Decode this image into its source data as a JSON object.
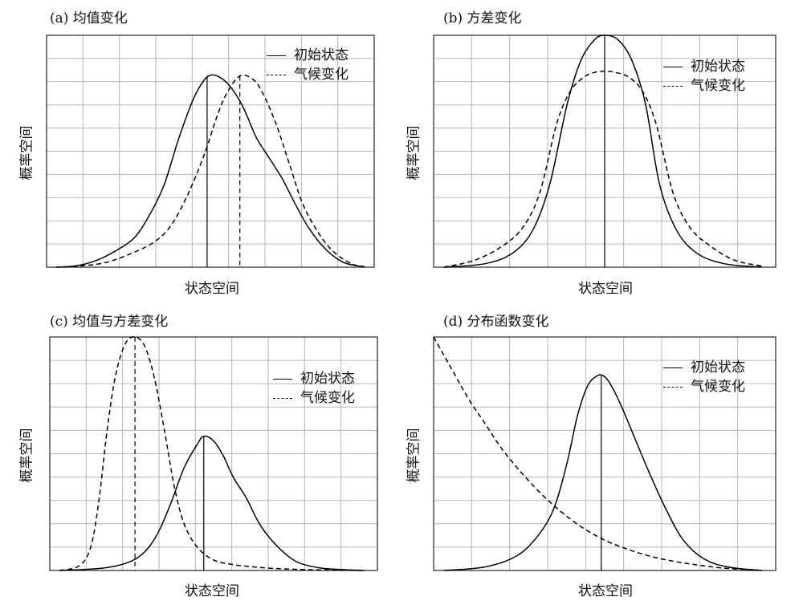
{
  "legend": {
    "initial": "初始状态",
    "climate_change": "气候变化"
  },
  "chart_data": [
    {
      "type": "line",
      "title": "(a) 均值变化",
      "xlabel": "状态空间",
      "ylabel": "概率空间",
      "xlim": [
        0,
        10
      ],
      "ylim": [
        0,
        10
      ],
      "grid": true,
      "legend_position": "top-right",
      "series": [
        {
          "name": "初始状态",
          "style": "solid",
          "x": [
            0.3,
            0.9,
            1.5,
            2.1,
            2.7,
            3.2,
            3.6,
            4.0,
            4.35,
            4.6,
            4.9,
            5.2,
            5.6,
            6.0,
            6.4,
            6.8,
            7.2,
            7.6,
            8.0,
            8.5,
            9.0,
            9.4,
            9.7
          ],
          "y": [
            0.0,
            0.06,
            0.28,
            0.7,
            1.3,
            2.4,
            3.6,
            5.4,
            6.8,
            7.6,
            8.2,
            8.25,
            7.8,
            6.9,
            5.6,
            4.7,
            3.8,
            2.7,
            1.7,
            0.8,
            0.25,
            0.08,
            0.02
          ],
          "peak_line_x": 4.9
        },
        {
          "name": "气候变化",
          "style": "dashed",
          "x": [
            0.3,
            1.0,
            1.8,
            2.6,
            3.3,
            3.8,
            4.3,
            4.8,
            5.2,
            5.5,
            5.9,
            6.3,
            6.6,
            7.0,
            7.4,
            7.8,
            8.2,
            8.6,
            9.0,
            9.4,
            9.7
          ],
          "y": [
            0.0,
            0.05,
            0.2,
            0.6,
            1.1,
            1.8,
            3.1,
            4.8,
            6.5,
            7.5,
            8.25,
            8.1,
            7.5,
            6.2,
            4.5,
            2.8,
            1.7,
            0.9,
            0.4,
            0.1,
            0.02
          ],
          "peak_line_x": 5.9
        }
      ]
    },
    {
      "type": "line",
      "title": "(b) 方差变化",
      "xlabel": "状态空间",
      "ylabel": "概率空间",
      "xlim": [
        0,
        10
      ],
      "ylim": [
        0,
        10
      ],
      "grid": true,
      "legend_position": "top-right",
      "series": [
        {
          "name": "初始状态",
          "style": "solid",
          "x": [
            0.3,
            1.5,
            2.3,
            2.9,
            3.4,
            3.9,
            4.3,
            4.7,
            5.0,
            5.4,
            5.8,
            6.2,
            6.6,
            7.1,
            7.7,
            8.5,
            9.6
          ],
          "y": [
            0.0,
            0.15,
            0.6,
            1.6,
            3.6,
            7.0,
            8.9,
            9.8,
            10.0,
            9.8,
            8.9,
            7.0,
            3.6,
            1.6,
            0.6,
            0.15,
            0.0
          ],
          "peak_line_x": 5.0
        },
        {
          "name": "气候变化",
          "style": "dashed",
          "x": [
            0.3,
            1.2,
            2.0,
            2.6,
            3.1,
            3.6,
            4.0,
            4.4,
            4.7,
            5.0,
            5.3,
            5.7,
            6.1,
            6.5,
            7.0,
            7.5,
            8.1,
            8.8,
            9.6
          ],
          "y": [
            0.0,
            0.3,
            0.9,
            1.7,
            3.2,
            6.2,
            7.6,
            8.2,
            8.4,
            8.45,
            8.4,
            8.2,
            7.6,
            6.2,
            3.2,
            1.7,
            0.9,
            0.3,
            0.05
          ]
        }
      ]
    },
    {
      "type": "line",
      "title": "(c) 均值与方差变化",
      "xlabel": "状态空间",
      "ylabel": "概率空间",
      "xlim": [
        0,
        10
      ],
      "ylim": [
        0,
        10
      ],
      "grid": true,
      "legend_position": "top-right",
      "series": [
        {
          "name": "初始状态",
          "style": "solid",
          "x": [
            0.3,
            1.6,
            2.4,
            2.9,
            3.3,
            3.7,
            4.1,
            4.5,
            4.7,
            5.0,
            5.3,
            5.6,
            6.0,
            6.4,
            6.9,
            7.5,
            8.2,
            8.9,
            9.6
          ],
          "y": [
            0.0,
            0.1,
            0.35,
            0.8,
            1.6,
            2.9,
            4.4,
            5.4,
            5.75,
            5.55,
            4.9,
            4.0,
            3.1,
            2.0,
            1.1,
            0.4,
            0.12,
            0.04,
            0.0
          ],
          "peak_line_x": 4.7
        },
        {
          "name": "气候变化",
          "style": "dashed",
          "x": [
            0.3,
            0.9,
            1.25,
            1.5,
            1.75,
            2.0,
            2.3,
            2.6,
            2.9,
            3.2,
            3.5,
            3.8,
            4.1,
            4.5,
            5.0,
            5.6,
            6.5,
            7.5,
            8.5,
            9.6
          ],
          "y": [
            0.0,
            0.2,
            1.0,
            3.0,
            6.0,
            8.3,
            9.7,
            10.0,
            9.6,
            8.2,
            6.0,
            3.6,
            2.0,
            1.0,
            0.45,
            0.25,
            0.12,
            0.05,
            0.02,
            0.0
          ],
          "peak_line_x": 2.6
        }
      ]
    },
    {
      "type": "line",
      "title": "(d) 分布函数变化",
      "xlabel": "状态空间",
      "ylabel": "概率空间",
      "xlim": [
        0,
        10
      ],
      "ylim": [
        0,
        10
      ],
      "grid": true,
      "legend_position": "top-right",
      "series": [
        {
          "name": "初始状态",
          "style": "solid",
          "x": [
            0.3,
            1.5,
            2.4,
            3.0,
            3.5,
            3.9,
            4.2,
            4.5,
            4.8,
            5.0,
            5.2,
            5.5,
            5.9,
            6.3,
            6.8,
            7.3,
            7.9,
            8.6,
            9.6
          ],
          "y": [
            0.0,
            0.15,
            0.6,
            1.4,
            2.6,
            4.6,
            6.6,
            7.9,
            8.35,
            8.3,
            7.9,
            7.0,
            5.6,
            4.2,
            2.6,
            1.3,
            0.5,
            0.15,
            0.0
          ],
          "peak_line_x": 4.9
        },
        {
          "name": "气候变化",
          "style": "dashed",
          "x": [
            0.0,
            0.5,
            1.0,
            1.5,
            2.0,
            2.5,
            3.0,
            3.5,
            4.0,
            4.5,
            5.0,
            5.5,
            6.0,
            6.5,
            7.0,
            7.5,
            8.0,
            8.5,
            9.0,
            9.5
          ],
          "y": [
            10.0,
            8.7,
            7.4,
            6.3,
            5.2,
            4.3,
            3.5,
            2.8,
            2.2,
            1.7,
            1.3,
            1.0,
            0.75,
            0.55,
            0.4,
            0.28,
            0.18,
            0.1,
            0.05,
            0.02
          ]
        }
      ]
    }
  ]
}
